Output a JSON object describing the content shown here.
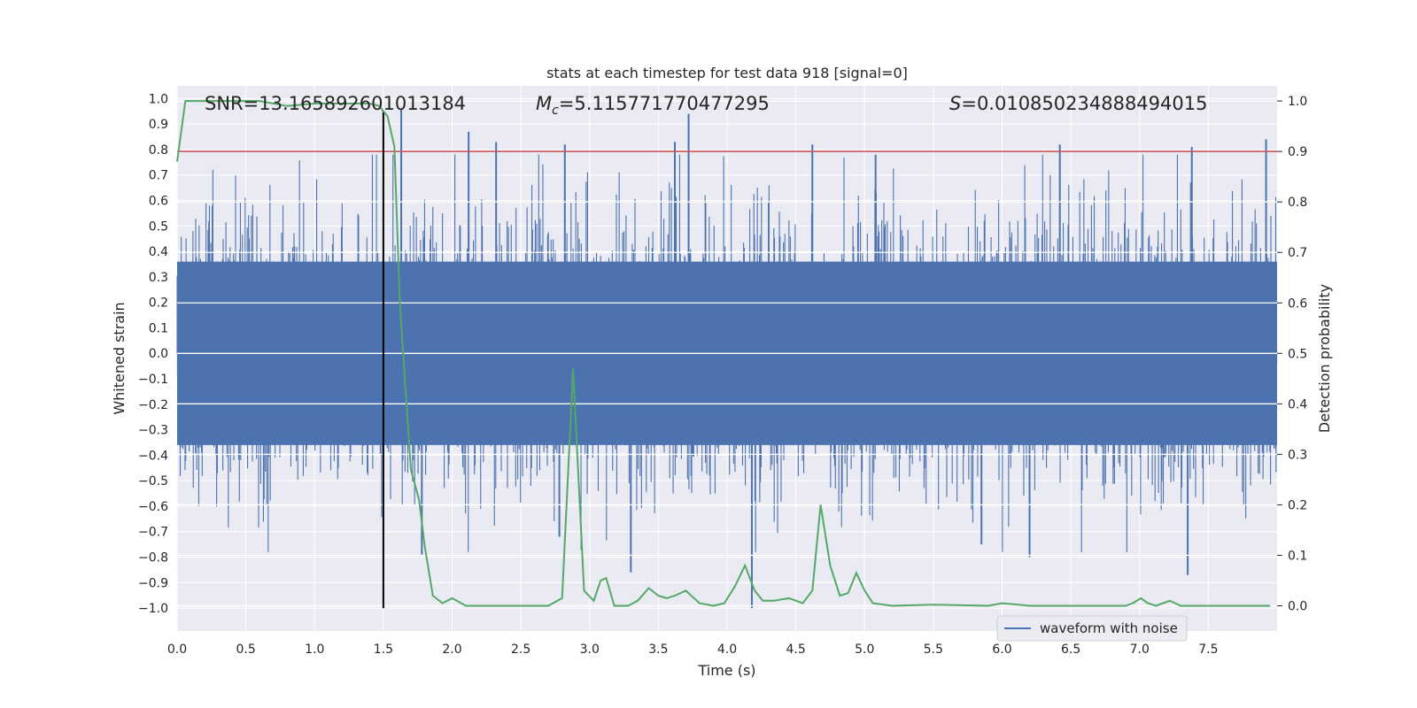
{
  "chart_data": {
    "type": "line",
    "title": "stats at each timestep for test data 918 [signal=0]",
    "xlabel": "Time (s)",
    "ylabel_left": "Whitened strain",
    "ylabel_right": "Detection probability",
    "xlim": [
      0.0,
      8.0
    ],
    "ylim_left": [
      -1.09,
      1.05
    ],
    "ylim_right": [
      -0.05,
      1.03
    ],
    "x_ticks": [
      0.0,
      0.5,
      1.0,
      1.5,
      2.0,
      2.5,
      3.0,
      3.5,
      4.0,
      4.5,
      5.0,
      5.5,
      6.0,
      6.5,
      7.0,
      7.5
    ],
    "x_tick_labels": [
      "0.0",
      "0.5",
      "1.0",
      "1.5",
      "2.0",
      "2.5",
      "3.0",
      "3.5",
      "4.0",
      "4.5",
      "5.0",
      "5.5",
      "6.0",
      "6.5",
      "7.0",
      "7.5"
    ],
    "y_left_ticks": [
      1.0,
      0.9,
      0.8,
      0.7,
      0.6,
      0.5,
      0.4,
      0.3,
      0.2,
      0.1,
      0.0,
      -0.1,
      -0.2,
      -0.3,
      -0.4,
      -0.5,
      -0.6,
      -0.7,
      -0.8,
      -0.9,
      -1.0
    ],
    "y_left_tick_labels": [
      "1.0",
      "0.9",
      "0.8",
      "0.7",
      "0.6",
      "0.5",
      "0.4",
      "0.3",
      "0.2",
      "0.1",
      "0.0",
      "−0.1",
      "−0.2",
      "−0.3",
      "−0.4",
      "−0.5",
      "−0.6",
      "−0.7",
      "−0.8",
      "−0.9",
      "−1.0"
    ],
    "y_right_ticks": [
      1.0,
      0.9,
      0.8,
      0.7,
      0.6,
      0.5,
      0.4,
      0.3,
      0.2,
      0.1,
      0.0
    ],
    "y_right_tick_labels": [
      "1.0",
      "0.9",
      "0.8",
      "0.7",
      "0.6",
      "0.5",
      "0.4",
      "0.3",
      "0.2",
      "0.1",
      "0.0"
    ],
    "annotations": {
      "snr": "SNR=13.165892601013184",
      "mc_symbol": "M",
      "mc_sub": "c",
      "mc_value": "=5.115771770477295",
      "s_symbol": "S",
      "s_value": "=0.010850234888494015"
    },
    "legend": {
      "label": "waveform with noise",
      "location": "lower-right"
    },
    "threshold": {
      "value": 0.9,
      "axis": "right",
      "color": "#c44e52"
    },
    "marker_line": {
      "x": 1.5,
      "y_range": [
        -1.0,
        0.95
      ],
      "color": "#000000"
    },
    "series": [
      {
        "name": "waveform with noise",
        "axis": "left",
        "color": "#4c72b0",
        "style": "dense noise, typical envelope ±0.45, spikes to ±0.85",
        "spikes": [
          {
            "x": 1.63,
            "y": 0.96
          },
          {
            "x": 1.78,
            "y": -0.79
          },
          {
            "x": 2.12,
            "y": 0.87
          },
          {
            "x": 2.32,
            "y": 0.83
          },
          {
            "x": 2.78,
            "y": -0.72
          },
          {
            "x": 2.82,
            "y": 0.82
          },
          {
            "x": 3.3,
            "y": -0.86
          },
          {
            "x": 3.62,
            "y": 0.83
          },
          {
            "x": 3.72,
            "y": 0.94
          },
          {
            "x": 4.18,
            "y": -1.0
          },
          {
            "x": 4.62,
            "y": 0.82
          },
          {
            "x": 5.08,
            "y": 0.78
          },
          {
            "x": 5.85,
            "y": -0.75
          },
          {
            "x": 6.2,
            "y": -0.8
          },
          {
            "x": 6.42,
            "y": 0.82
          },
          {
            "x": 7.35,
            "y": -0.87
          },
          {
            "x": 7.38,
            "y": 0.81
          },
          {
            "x": 7.92,
            "y": 0.84
          }
        ]
      },
      {
        "name": "detection probability",
        "axis": "right",
        "color": "#55a868",
        "x": [
          0.0,
          0.06,
          0.2,
          0.4,
          0.6,
          0.8,
          1.0,
          1.2,
          1.4,
          1.47,
          1.53,
          1.58,
          1.62,
          1.7,
          1.76,
          1.8,
          1.86,
          1.93,
          2.0,
          2.1,
          2.5,
          2.7,
          2.8,
          2.88,
          2.96,
          3.03,
          3.08,
          3.12,
          3.18,
          3.28,
          3.35,
          3.43,
          3.5,
          3.56,
          3.62,
          3.7,
          3.8,
          3.9,
          3.98,
          4.06,
          4.13,
          4.2,
          4.26,
          4.34,
          4.45,
          4.55,
          4.62,
          4.68,
          4.75,
          4.82,
          4.88,
          4.94,
          5.0,
          5.06,
          5.2,
          5.5,
          5.9,
          6.0,
          6.2,
          6.5,
          6.9,
          6.95,
          7.01,
          7.06,
          7.12,
          7.22,
          7.3,
          7.5,
          7.95
        ],
        "values": [
          0.88,
          1.0,
          1.0,
          1.0,
          1.0,
          0.99,
          0.995,
          0.995,
          0.995,
          0.99,
          0.97,
          0.91,
          0.6,
          0.27,
          0.21,
          0.12,
          0.02,
          0.005,
          0.015,
          0.0,
          0.0,
          0.0,
          0.015,
          0.47,
          0.03,
          0.01,
          0.05,
          0.055,
          0.0,
          0.0,
          0.01,
          0.035,
          0.02,
          0.015,
          0.02,
          0.03,
          0.005,
          0.0,
          0.005,
          0.04,
          0.08,
          0.03,
          0.01,
          0.01,
          0.015,
          0.005,
          0.03,
          0.2,
          0.08,
          0.02,
          0.025,
          0.065,
          0.03,
          0.005,
          0.0,
          0.002,
          0.0,
          0.005,
          0.0,
          0.0,
          0.0,
          0.005,
          0.015,
          0.005,
          0.0,
          0.01,
          0.0,
          0.0,
          0.0
        ]
      }
    ]
  }
}
